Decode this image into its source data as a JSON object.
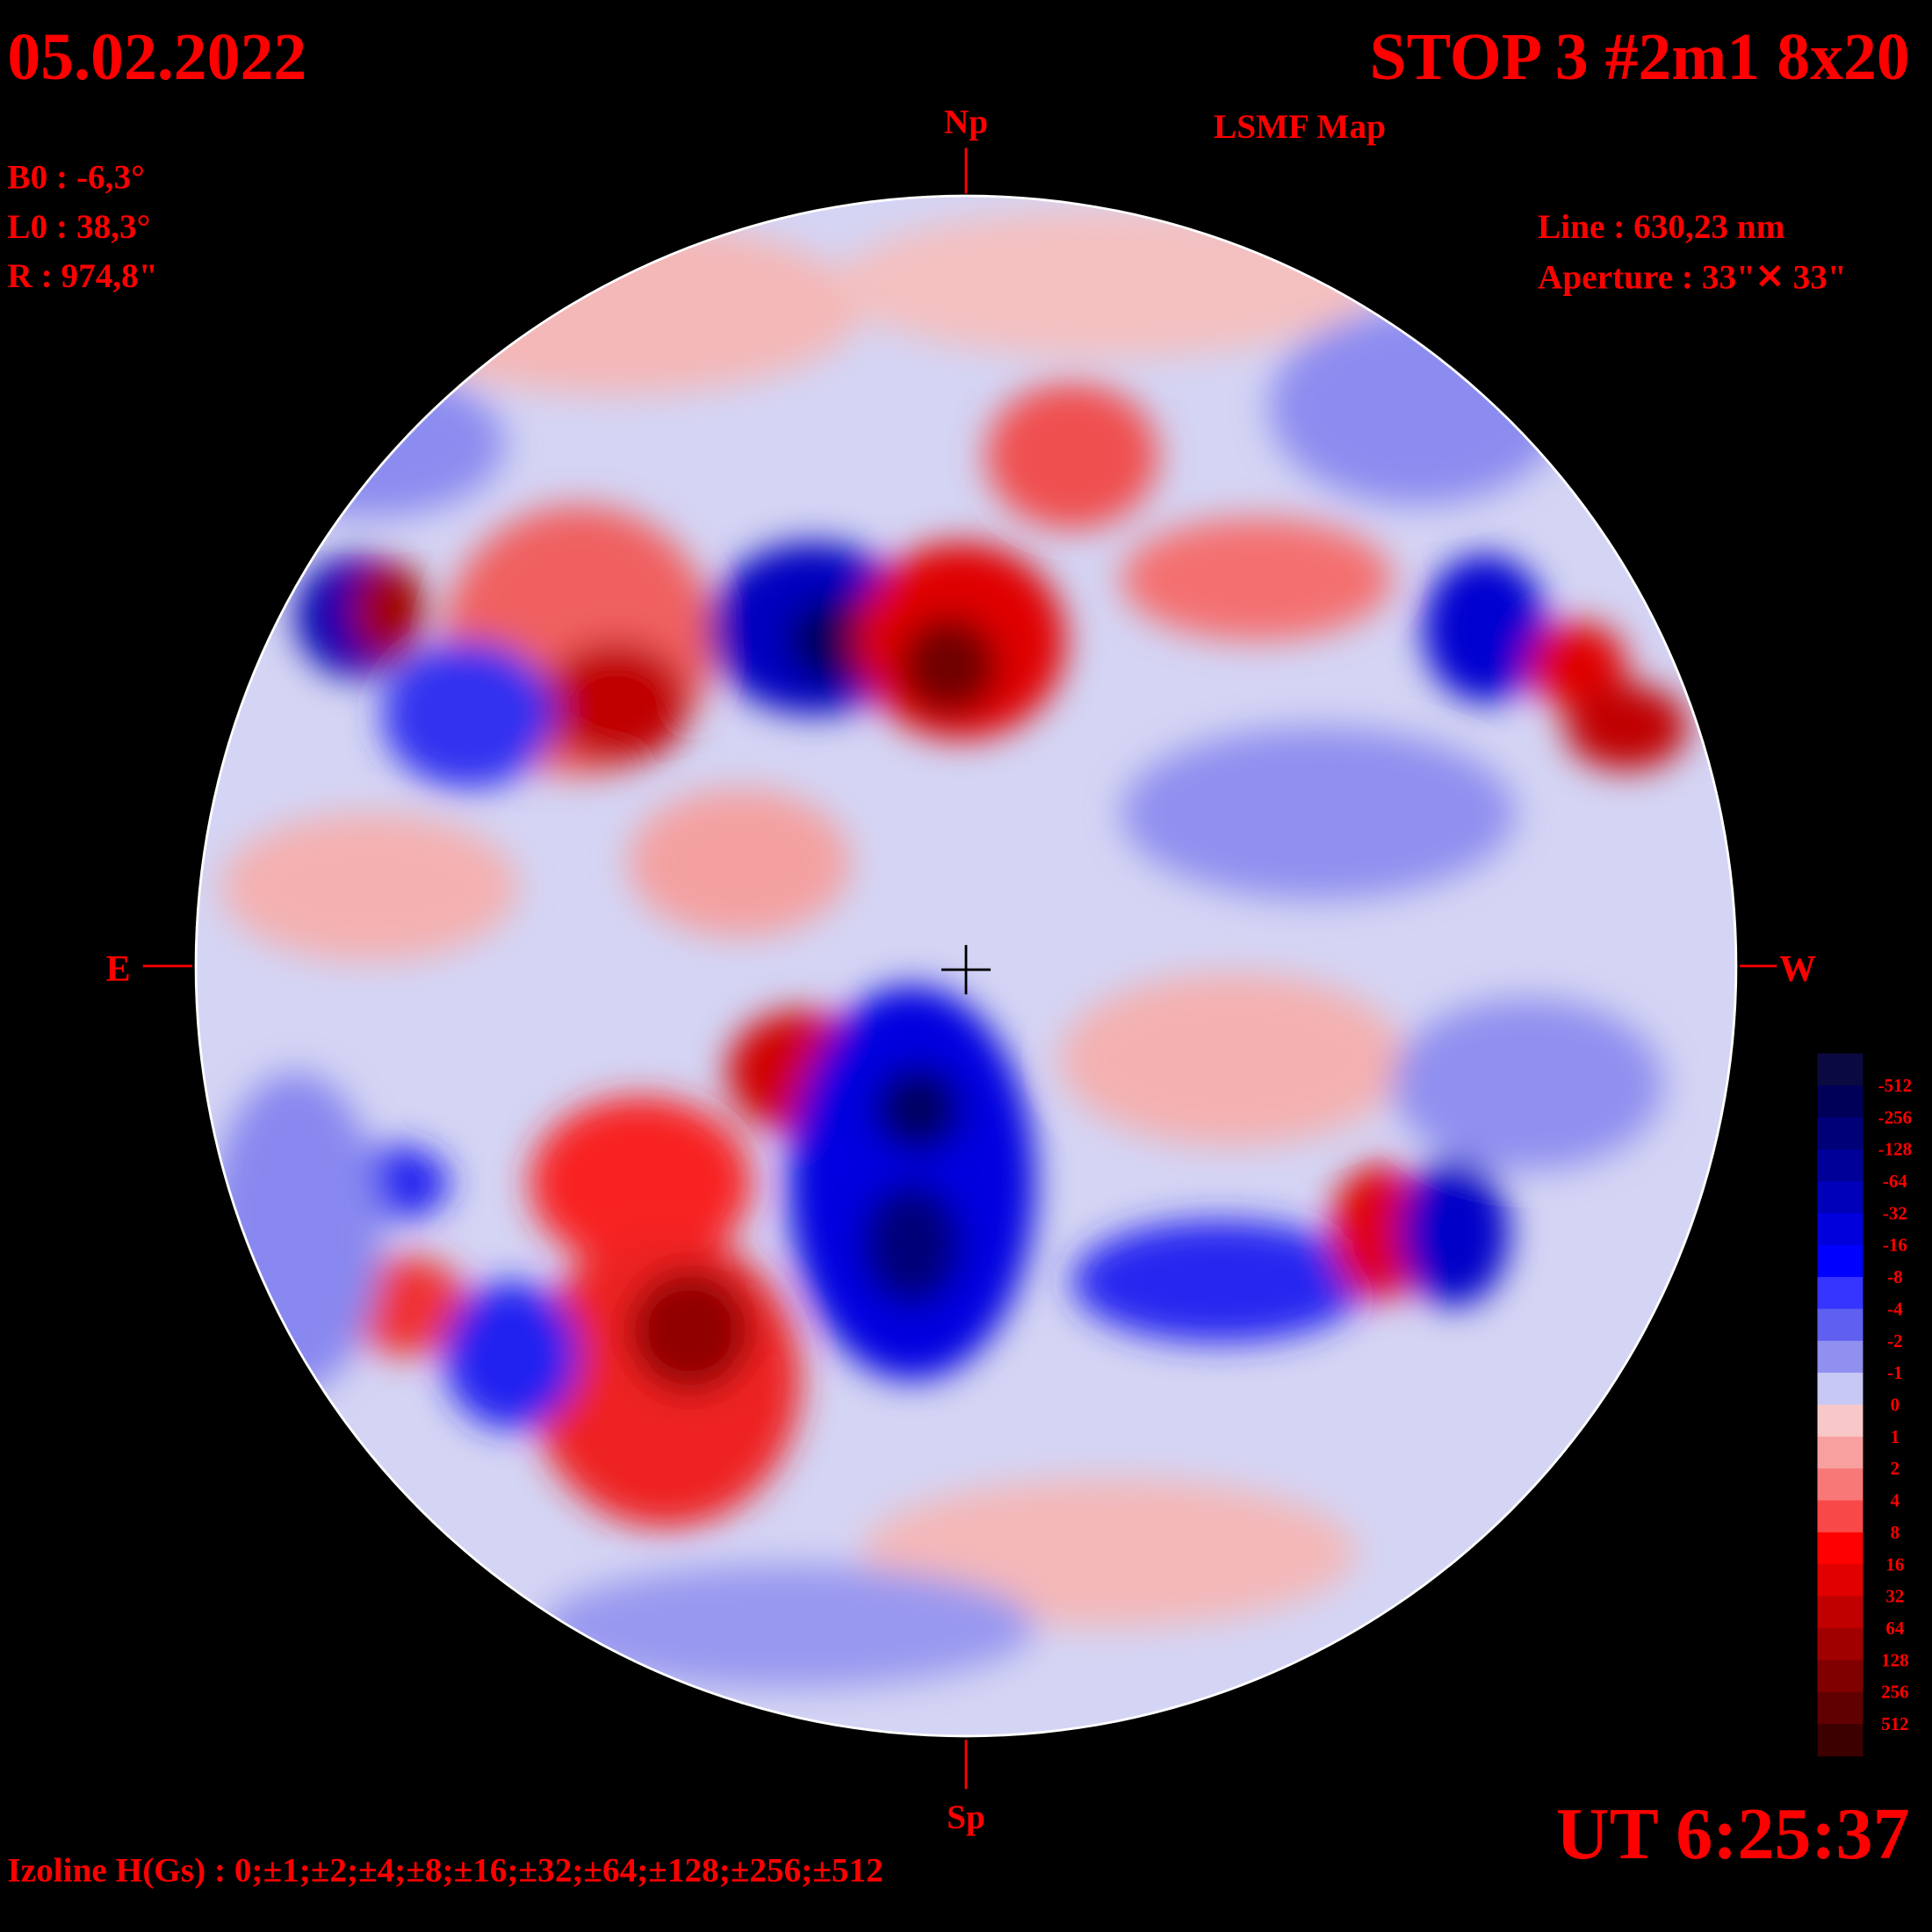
{
  "header": {
    "date": "05.02.2022",
    "title": "STOP 3 #2m1 8x20",
    "subtitle": "LSMF  Map"
  },
  "params": [
    "B0 : -6,3°",
    "L0 : 38,3°",
    "R  : 974,8\""
  ],
  "instrument": {
    "line": "Line :  630,23 nm",
    "aperture": "Aperture : 33\"✕ 33\""
  },
  "directions": {
    "north": "Np",
    "south": "Sp",
    "east": "E",
    "west": "W"
  },
  "time": "UT 6:25:37",
  "isolines": "Izoline H(Gs) : 0;±1;±2;±4;±8;±16;±32;±64;±128;±256;±512",
  "colorbar": {
    "labels": [
      -512,
      -256,
      -128,
      -64,
      -32,
      -16,
      -8,
      -4,
      -2,
      -1,
      0,
      1,
      2,
      4,
      8,
      16,
      32,
      64,
      128,
      256,
      512
    ],
    "colors": [
      "#0a0a40",
      "#000058",
      "#000078",
      "#000098",
      "#0000b8",
      "#0000dc",
      "#0000ff",
      "#3535ff",
      "#6060f0",
      "#9090f0",
      "#c8c8f4",
      "#f8c8c8",
      "#f8a0a0",
      "#f87878",
      "#f84848",
      "#ff0000",
      "#e00000",
      "#c00000",
      "#a00000",
      "#800000",
      "#600000",
      "#3c0000"
    ]
  }
}
